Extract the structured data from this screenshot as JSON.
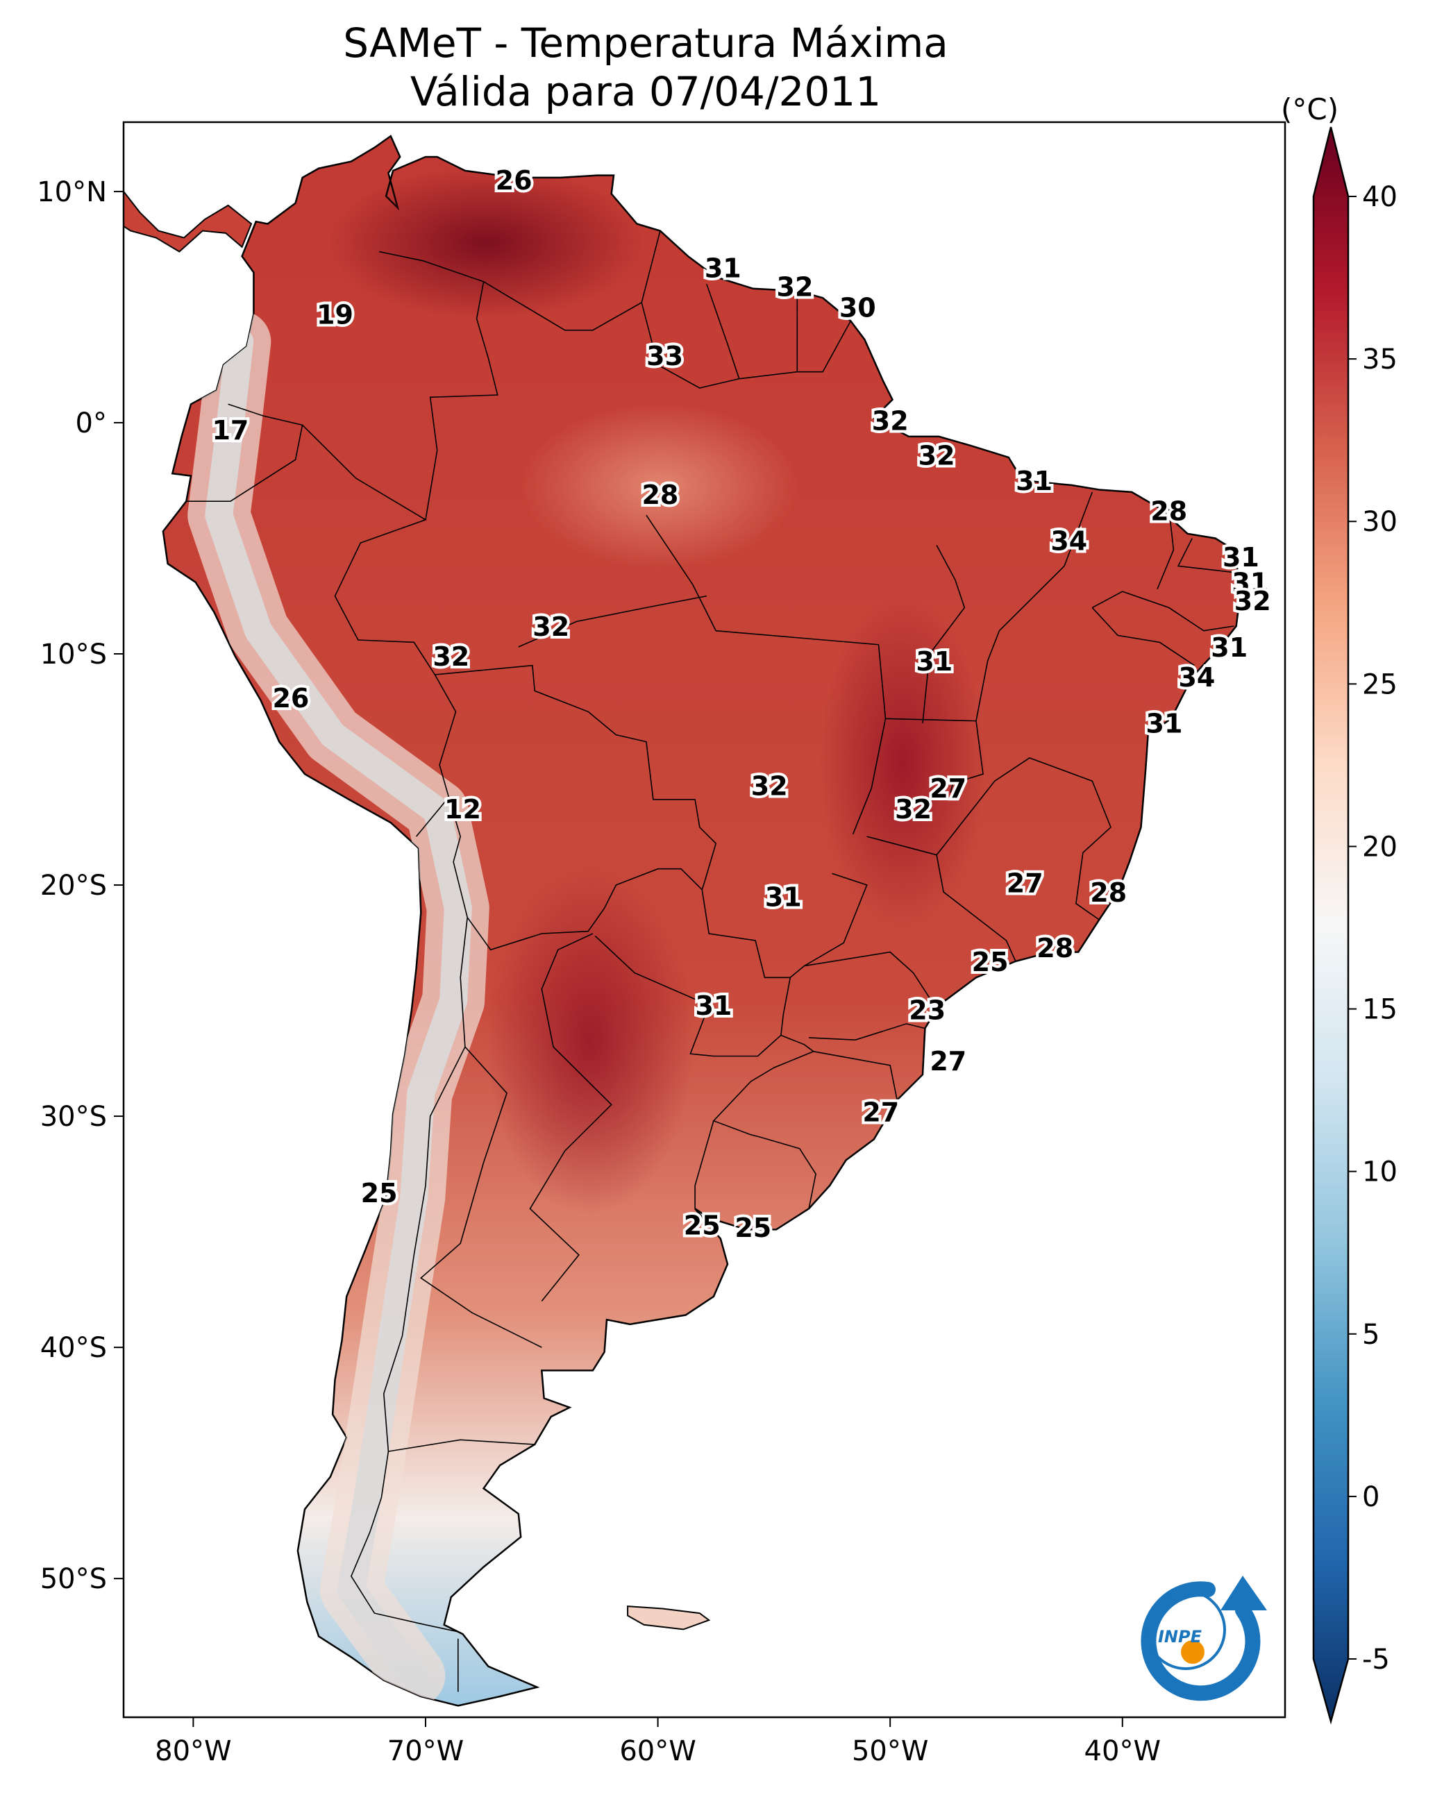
{
  "title": {
    "line1": "SAMeT - Temperatura Máxima",
    "line2": "Válida para 07/04/2011"
  },
  "map": {
    "lon_range": [
      -83,
      -33
    ],
    "lat_range": [
      -56,
      13
    ],
    "lon_ticks": [
      "80°W",
      "70°W",
      "60°W",
      "50°W",
      "40°W"
    ],
    "lon_tick_values": [
      -80,
      -70,
      -60,
      -50,
      -40
    ],
    "lat_ticks": [
      "10°N",
      "0°",
      "10°S",
      "20°S",
      "30°S",
      "40°S",
      "50°S"
    ],
    "lat_tick_values": [
      10,
      0,
      -10,
      -20,
      -30,
      -40,
      -50
    ],
    "labels": [
      {
        "v": "26",
        "lon": -66.2,
        "lat": 10.4
      },
      {
        "v": "31",
        "lon": -57.2,
        "lat": 6.6
      },
      {
        "v": "32",
        "lon": -54.1,
        "lat": 5.8
      },
      {
        "v": "30",
        "lon": -51.4,
        "lat": 4.9
      },
      {
        "v": "19",
        "lon": -73.9,
        "lat": 4.6
      },
      {
        "v": "33",
        "lon": -59.7,
        "lat": 2.8
      },
      {
        "v": "17",
        "lon": -78.4,
        "lat": -0.4
      },
      {
        "v": "32",
        "lon": -50.0,
        "lat": 0.0
      },
      {
        "v": "32",
        "lon": -48.0,
        "lat": -1.5
      },
      {
        "v": "31",
        "lon": -43.8,
        "lat": -2.6
      },
      {
        "v": "28",
        "lon": -59.9,
        "lat": -3.2
      },
      {
        "v": "28",
        "lon": -38.0,
        "lat": -3.9
      },
      {
        "v": "34",
        "lon": -42.3,
        "lat": -5.2
      },
      {
        "v": "31",
        "lon": -34.9,
        "lat": -5.9
      },
      {
        "v": "31",
        "lon": -34.5,
        "lat": -7.0
      },
      {
        "v": "32",
        "lon": -34.4,
        "lat": -7.8
      },
      {
        "v": "32",
        "lon": -64.6,
        "lat": -8.9
      },
      {
        "v": "32",
        "lon": -68.9,
        "lat": -10.2
      },
      {
        "v": "31",
        "lon": -35.4,
        "lat": -9.8
      },
      {
        "v": "31",
        "lon": -48.1,
        "lat": -10.4
      },
      {
        "v": "34",
        "lon": -36.8,
        "lat": -11.1
      },
      {
        "v": "26",
        "lon": -75.8,
        "lat": -12.0
      },
      {
        "v": "31",
        "lon": -38.2,
        "lat": -13.1
      },
      {
        "v": "32",
        "lon": -55.2,
        "lat": -15.8
      },
      {
        "v": "27",
        "lon": -47.5,
        "lat": -15.9
      },
      {
        "v": "12",
        "lon": -68.4,
        "lat": -16.8
      },
      {
        "v": "32",
        "lon": -49.0,
        "lat": -16.8
      },
      {
        "v": "27",
        "lon": -44.2,
        "lat": -20.0
      },
      {
        "v": "28",
        "lon": -40.6,
        "lat": -20.4
      },
      {
        "v": "31",
        "lon": -54.6,
        "lat": -20.6
      },
      {
        "v": "28",
        "lon": -42.9,
        "lat": -22.8
      },
      {
        "v": "25",
        "lon": -45.7,
        "lat": -23.4
      },
      {
        "v": "31",
        "lon": -57.6,
        "lat": -25.3
      },
      {
        "v": "23",
        "lon": -48.4,
        "lat": -25.5
      },
      {
        "v": "27",
        "lon": -47.5,
        "lat": -27.7
      },
      {
        "v": "27",
        "lon": -50.4,
        "lat": -29.9
      },
      {
        "v": "25",
        "lon": -72.0,
        "lat": -33.4
      },
      {
        "v": "25",
        "lon": -58.1,
        "lat": -34.8
      },
      {
        "v": "25",
        "lon": -55.9,
        "lat": -34.9
      }
    ]
  },
  "colorbar": {
    "unit": "(°C)",
    "ticks": [
      "-5",
      "0",
      "5",
      "10",
      "15",
      "20",
      "25",
      "30",
      "35",
      "40"
    ],
    "range": [
      -5,
      40
    ],
    "colors": [
      "#0b2f63",
      "#2166ac",
      "#4393c3",
      "#92c5de",
      "#d1e5f0",
      "#f7f7f7",
      "#fddbc7",
      "#f4a582",
      "#d6604d",
      "#b2182b",
      "#67001f"
    ]
  },
  "logo": {
    "text": "INPE",
    "accent": "#f39200",
    "primary": "#1b75bc"
  }
}
